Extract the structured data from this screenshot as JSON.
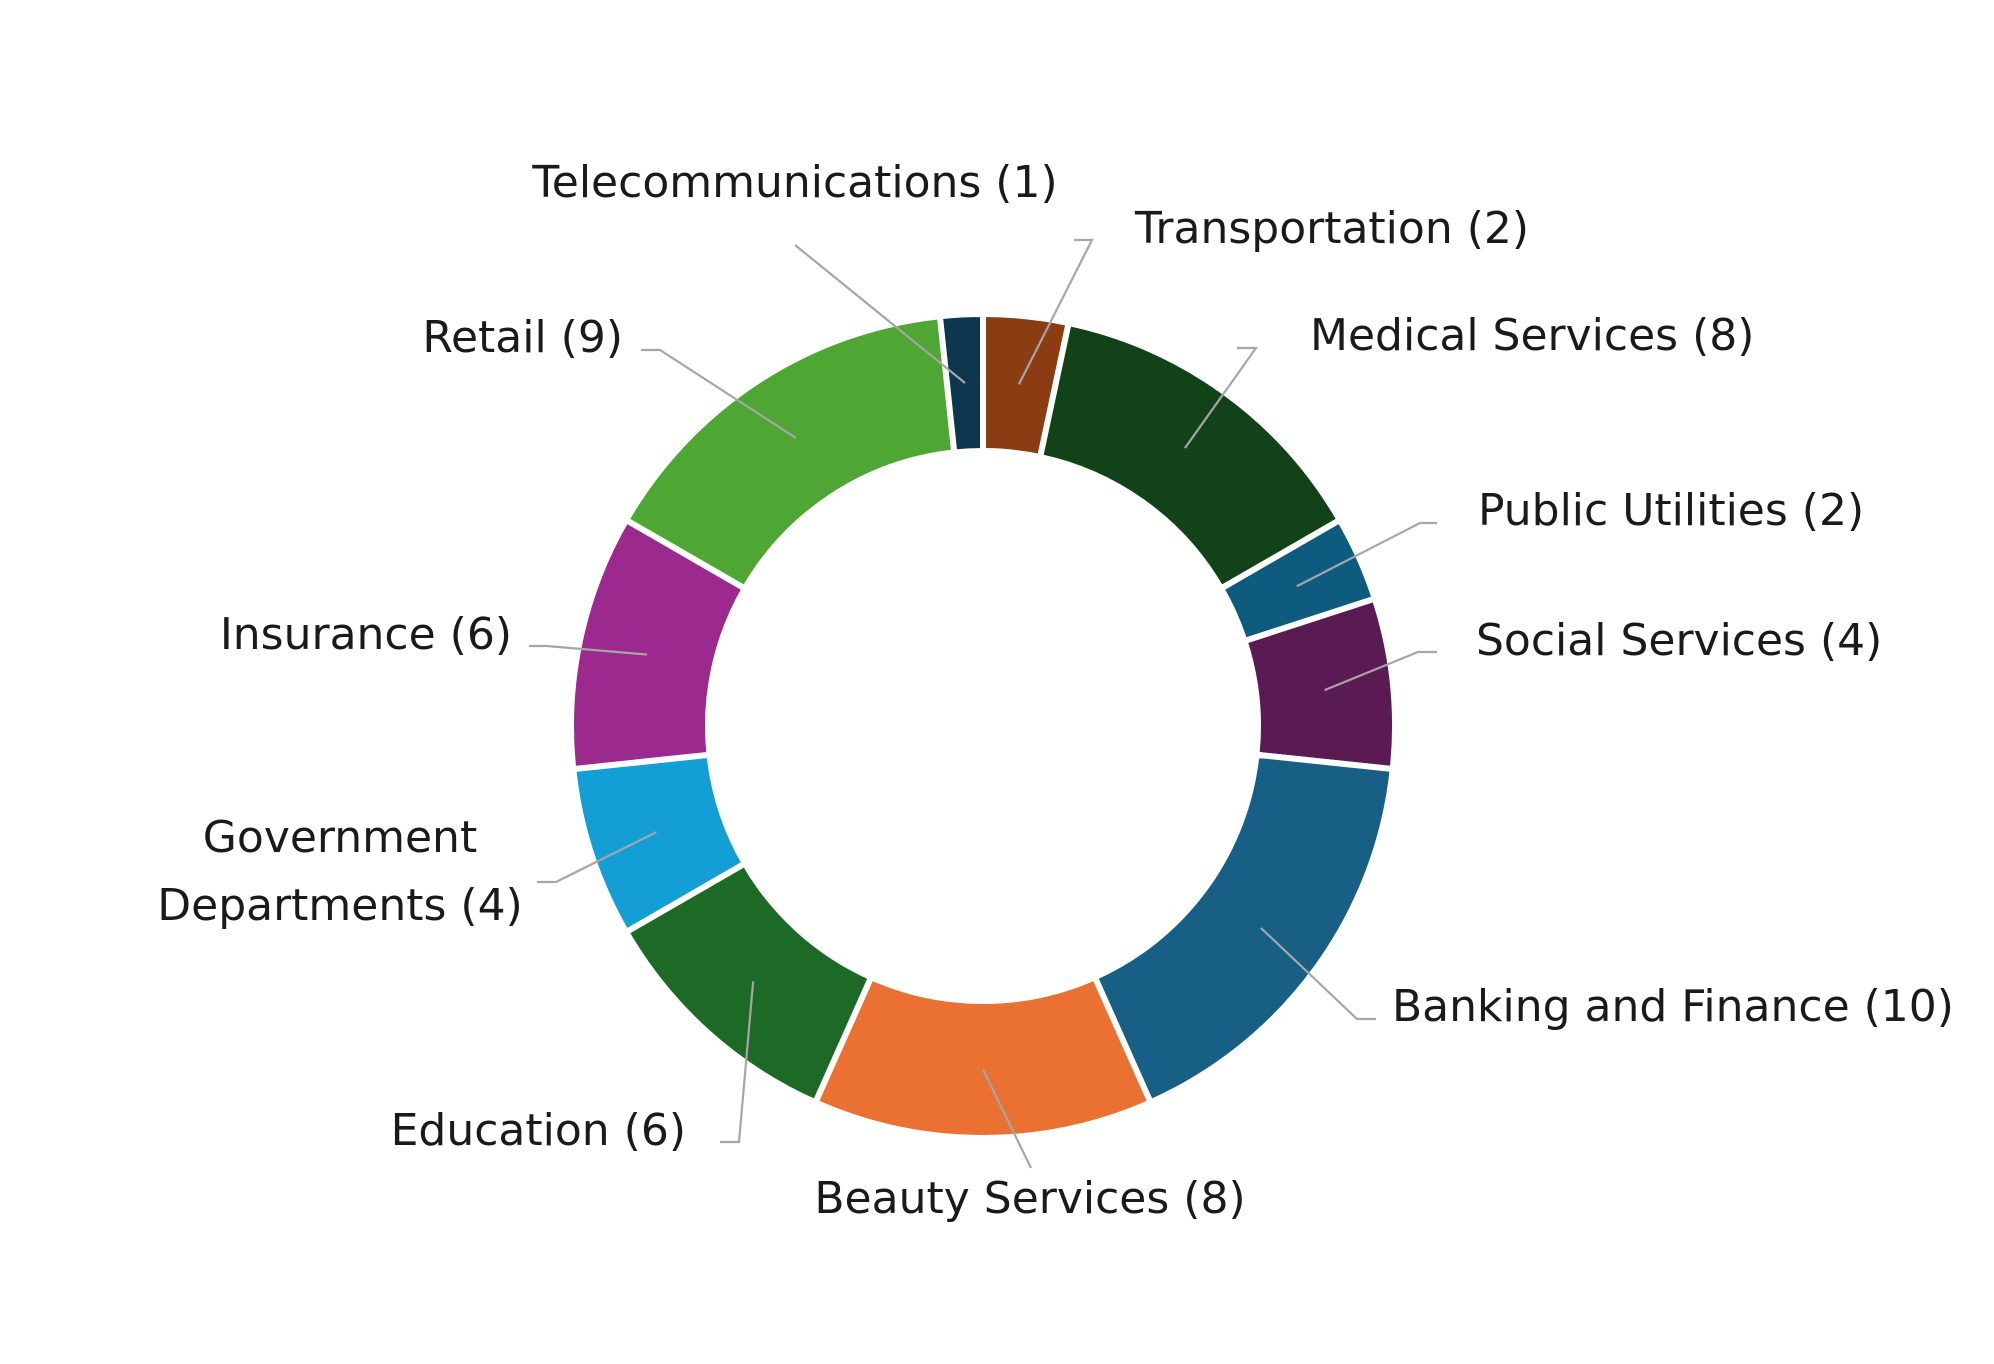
{
  "chart_data": {
    "type": "pie",
    "variant": "doughnut",
    "legend": "none",
    "categories": [
      "Transportation",
      "Medical Services",
      "Public Utilities",
      "Social Services",
      "Banking and Finance",
      "Beauty Services",
      "Education",
      "Government Departments",
      "Insurance",
      "Retail",
      "Telecommunications"
    ],
    "values": [
      2,
      8,
      2,
      4,
      10,
      8,
      6,
      4,
      6,
      9,
      1
    ],
    "colors": [
      "#8b3c12",
      "#124218",
      "#0d5b7f",
      "#5a1a52",
      "#175f85",
      "#ea7131",
      "#1c6a25",
      "#139fd6",
      "#9c2a8e",
      "#4ea732",
      "#0d374e"
    ],
    "labels": [
      [
        "Transportation (2)"
      ],
      [
        "Medical Services (8)"
      ],
      [
        "Public Utilities (2)"
      ],
      [
        "Social Services (4)"
      ],
      [
        "Banking and Finance (10)"
      ],
      [
        "Beauty Services (8)"
      ],
      [
        "Education (6)"
      ],
      [
        "Government",
        "Departments (4)"
      ],
      [
        "Insurance (6)"
      ],
      [
        "Retail (9)"
      ],
      [
        "Telecommunications (1)"
      ]
    ]
  }
}
